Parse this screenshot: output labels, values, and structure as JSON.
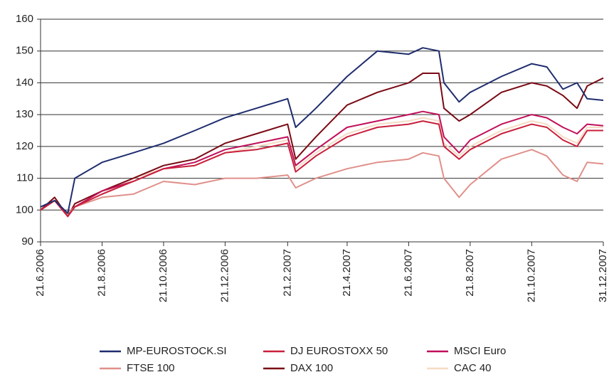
{
  "chart_data": {
    "type": "line",
    "x": [
      "21.6.2006",
      "5.7.2006",
      "18.7.2006",
      "25.7.2006",
      "21.8.2006",
      "21.9.2006",
      "21.10.2006",
      "21.11.2006",
      "21.12.2006",
      "21.1.2007",
      "21.2.2007",
      "1.3.2007",
      "21.3.2007",
      "21.4.2007",
      "21.5.2007",
      "21.6.2007",
      "5.7.2007",
      "21.7.2007",
      "26.7.2007",
      "10.8.2007",
      "21.8.2007",
      "21.9.2007",
      "21.10.2007",
      "5.11.2007",
      "21.11.2007",
      "5.12.2007",
      "15.12.2007",
      "31.12.2007"
    ],
    "series": [
      {
        "name": "MP-EUROSTOCK.SI",
        "color": "#1f2d6e",
        "values": [
          101,
          103,
          99,
          110,
          115,
          118,
          121,
          125,
          129,
          132,
          135,
          126,
          132,
          142,
          150,
          149,
          151,
          150,
          140,
          134,
          137,
          142,
          146,
          145,
          138,
          140,
          135,
          134.5
        ]
      },
      {
        "name": "DJ EUROSTOXX 50",
        "color": "#c8203c",
        "values": [
          100,
          103,
          98,
          101,
          105,
          109,
          113,
          114,
          118,
          119,
          121,
          112,
          117,
          123,
          126,
          127,
          128,
          127,
          120,
          116,
          119,
          124,
          127,
          126,
          122,
          120,
          125,
          125
        ]
      },
      {
        "name": "MSCI Euro",
        "color": "#c0105a",
        "values": [
          100,
          103,
          98,
          101,
          106,
          109,
          113,
          115,
          119,
          121,
          123,
          114,
          119,
          126,
          128,
          130,
          131,
          130,
          123,
          118,
          122,
          127,
          130,
          129,
          126,
          124,
          127,
          126.5
        ]
      },
      {
        "name": "FTSE 100",
        "color": "#e0908a",
        "values": [
          100,
          103,
          99,
          101,
          104,
          105,
          109,
          108,
          110,
          110,
          111,
          107,
          110,
          113,
          115,
          116,
          118,
          117,
          110,
          104,
          108,
          116,
          119,
          117,
          111,
          109,
          115,
          114.5
        ]
      },
      {
        "name": "DAX 100",
        "color": "#7a0a14",
        "values": [
          100,
          104,
          98,
          102,
          106,
          110,
          114,
          116,
          121,
          124,
          127,
          116,
          123,
          133,
          137,
          140,
          143,
          143,
          132,
          128,
          130,
          137,
          140,
          139,
          136,
          132,
          139,
          141.5
        ]
      },
      {
        "name": "CAC 40",
        "color": "#f5dcc4",
        "values": [
          100,
          103,
          98,
          101,
          105,
          110,
          113,
          114,
          118,
          120,
          122,
          113,
          118,
          124,
          127,
          128,
          129,
          128,
          121,
          117,
          120,
          125,
          128,
          127,
          123,
          121,
          126,
          126
        ]
      }
    ],
    "xlim": [
      "21.6.2006",
      "31.12.2007"
    ],
    "xticks": [
      "21.6.2006",
      "21.8.2006",
      "21.10.2006",
      "21.12.2006",
      "21.2.2007",
      "21.4.2007",
      "21.6.2007",
      "21.8.2007",
      "21.10.2007",
      "31.12.2007"
    ],
    "ylim": [
      90,
      160
    ],
    "yticks": [
      90,
      100,
      110,
      120,
      130,
      140,
      150,
      160
    ],
    "grid": true,
    "legend": "bottom"
  }
}
